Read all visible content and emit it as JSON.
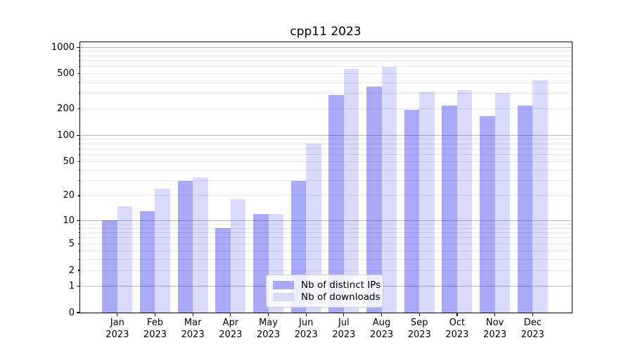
{
  "chart_data": {
    "type": "bar",
    "title": "cpp11 2023",
    "categories": [
      "Jan",
      "Feb",
      "Mar",
      "Apr",
      "May",
      "Jun",
      "Jul",
      "Aug",
      "Sep",
      "Oct",
      "Nov",
      "Dec"
    ],
    "category_year": "2023",
    "series": [
      {
        "name": "Nb of distinct IPs",
        "color": "#a8a8f4",
        "fill_rgba": "rgba(10,10,240,0.35)",
        "values": [
          10,
          13,
          30,
          8,
          12,
          30,
          290,
          360,
          197,
          220,
          165,
          220
        ]
      },
      {
        "name": "Nb of downloads",
        "color": "#dbdbf8",
        "fill_rgba": "rgba(10,10,240,0.15)",
        "values": [
          15,
          24,
          33,
          18,
          12,
          80,
          570,
          600,
          315,
          330,
          305,
          420
        ]
      }
    ],
    "y_axis": {
      "scale": "log1p",
      "tick_values": [
        0,
        1,
        2,
        5,
        10,
        20,
        50,
        100,
        200,
        500,
        1000
      ],
      "tick_labels": [
        "0",
        "1",
        "2",
        "5",
        "10",
        "20",
        "50",
        "100",
        "200",
        "500",
        "1000"
      ],
      "minor_values": [
        3,
        4,
        6,
        7,
        8,
        9,
        30,
        40,
        60,
        70,
        80,
        90,
        300,
        400,
        600,
        700,
        800,
        900
      ],
      "decade_values": [
        1,
        10,
        100,
        1000
      ],
      "ylim": [
        0,
        1160
      ]
    },
    "x_axis": {
      "tick_label_line1": [
        "Jan",
        "Feb",
        "Mar",
        "Apr",
        "May",
        "Jun",
        "Jul",
        "Aug",
        "Sep",
        "Oct",
        "Nov",
        "Dec"
      ],
      "tick_label_line2": "2023"
    },
    "legend": {
      "position": "lower center",
      "entries": [
        "Nb of distinct IPs",
        "Nb of downloads"
      ]
    },
    "grid": "major+minor"
  },
  "colors": {
    "decade_grid": "#b9b9b9",
    "minor_grid": "#e7e7e7",
    "spine": "#000000",
    "text": "#000000",
    "legend_border": "#cccccc",
    "legend_bg": "rgba(255,255,255,0.8)",
    "series_dark": "#a8a8f4",
    "series_light": "#dbdbf8"
  }
}
